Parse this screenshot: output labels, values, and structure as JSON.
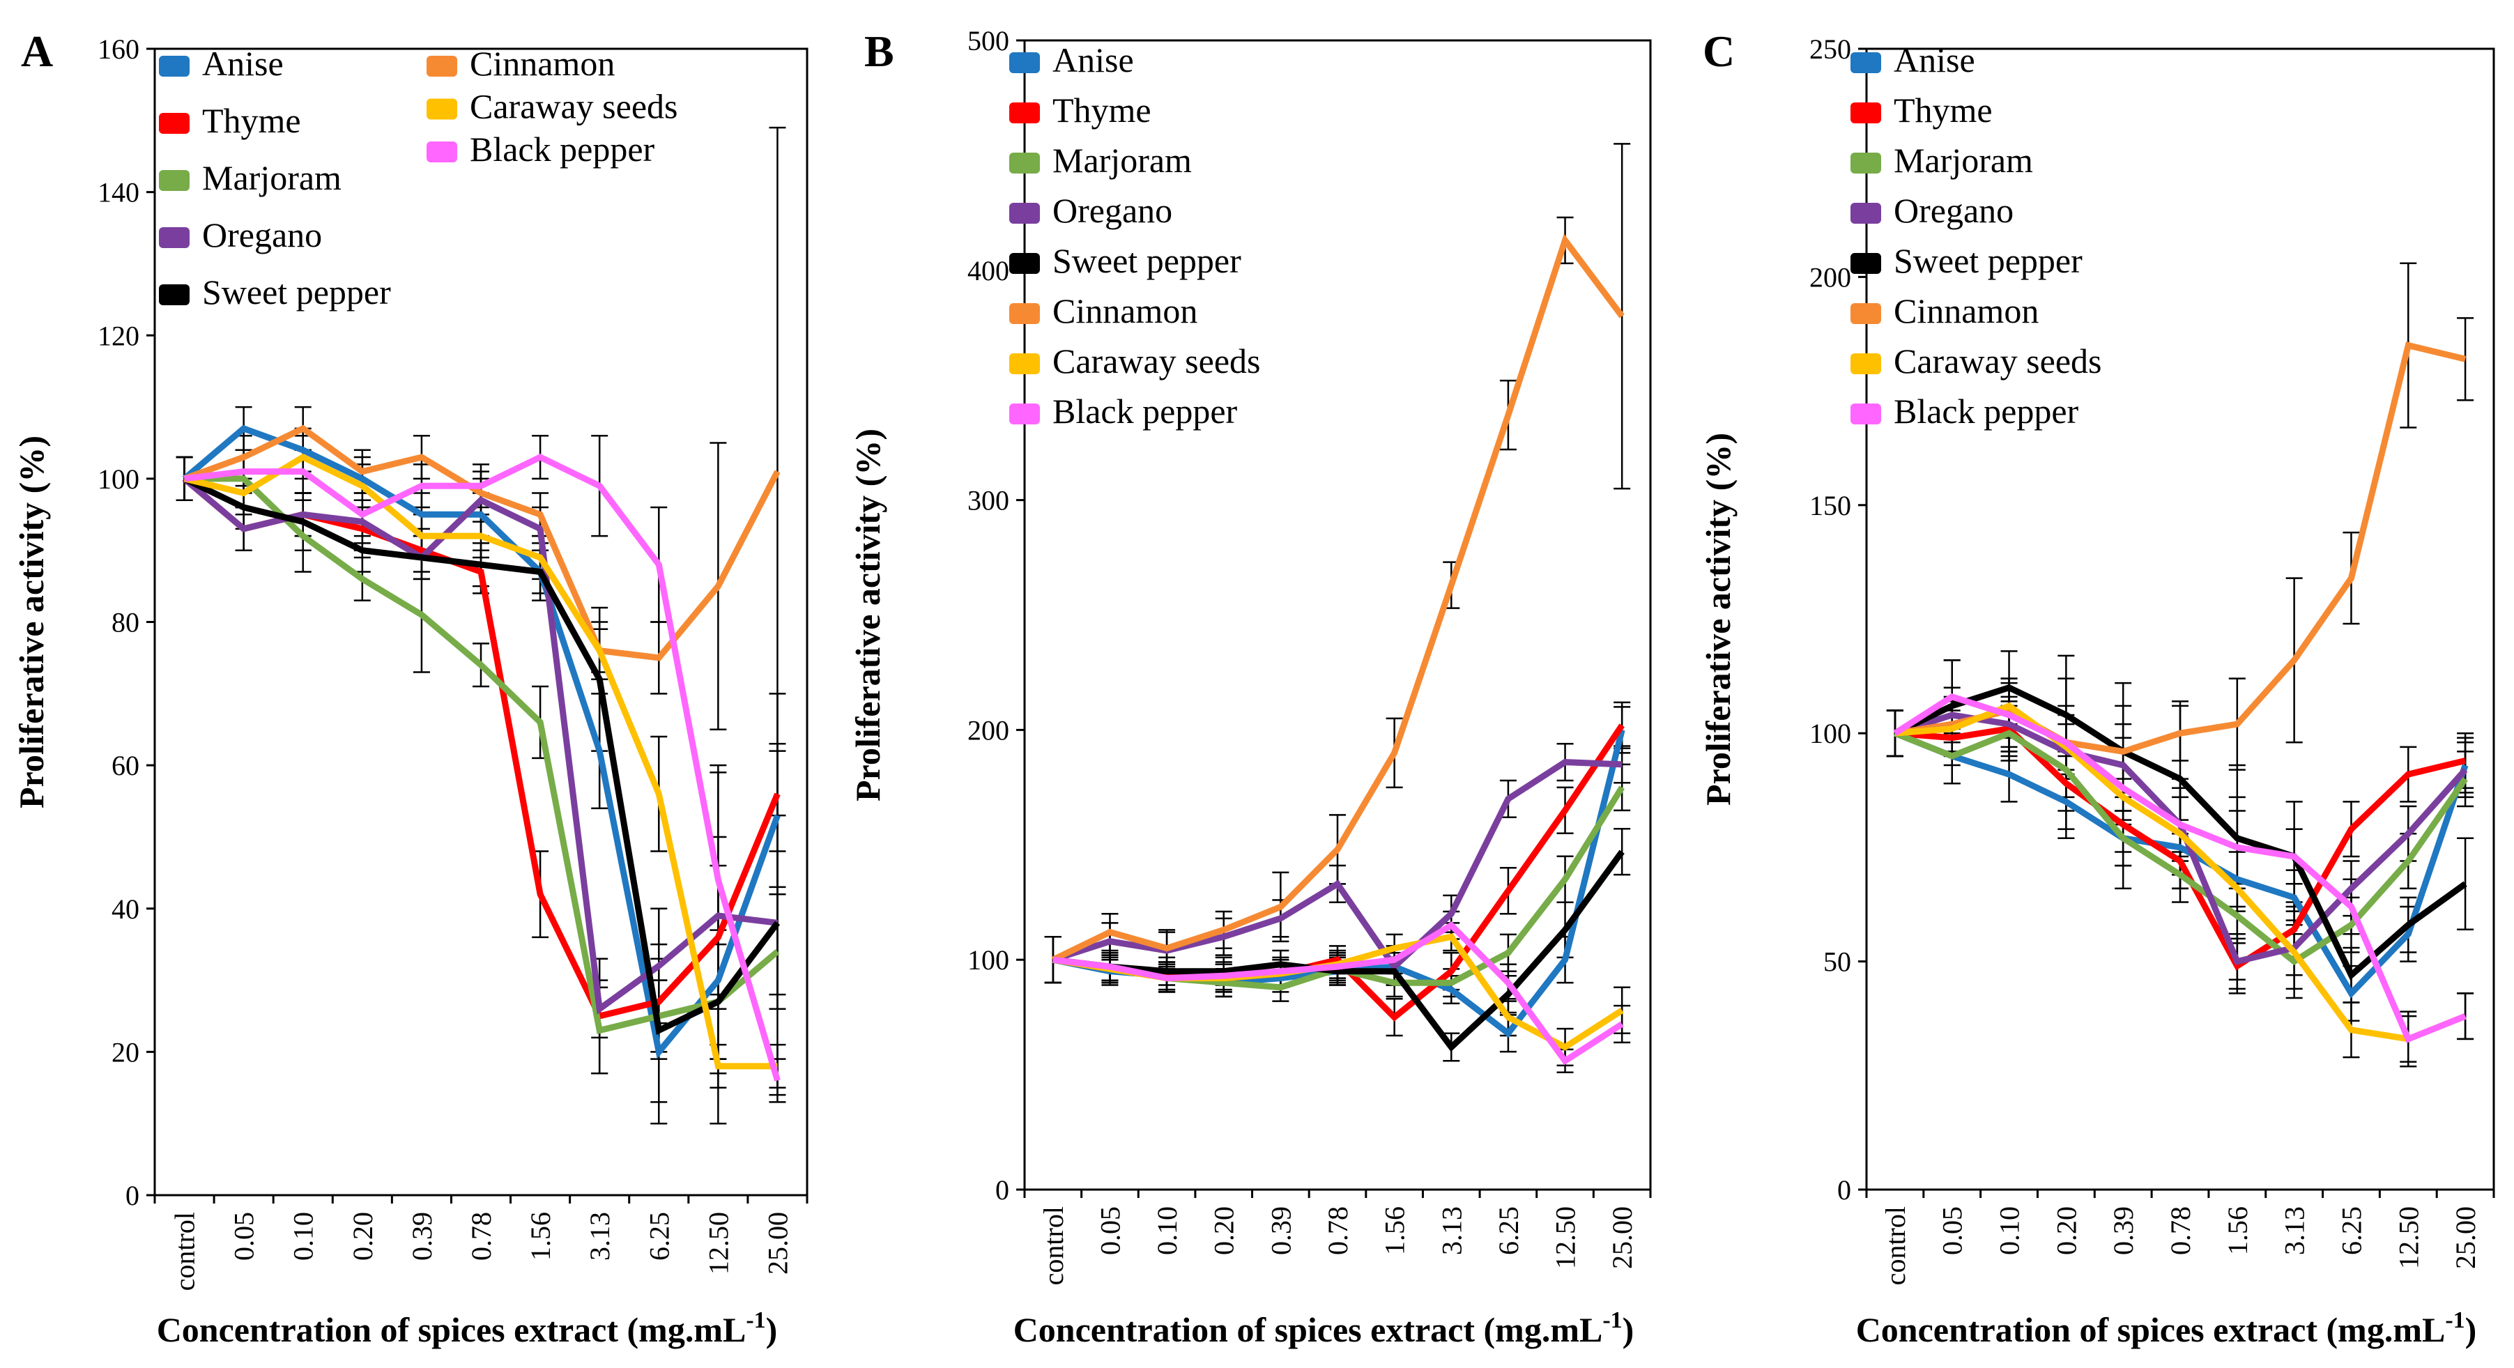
{
  "chart_data": [
    {
      "type": "line",
      "panel": "A",
      "categories": [
        "control",
        "0.05",
        "0.10",
        "0.20",
        "0.39",
        "0.78",
        "1.56",
        "3.13",
        "6.25",
        "12.50",
        "25.00"
      ],
      "xlabel": "Concentration of spices extract (mg.mL",
      "xlabel_sup": "-1",
      "xlabel_end": ")",
      "ylabel": "Proliferative activity (%)",
      "ylim": [
        0,
        160
      ],
      "yticks": [
        "0",
        "20",
        "40",
        "60",
        "80",
        "100",
        "120",
        "140",
        "160"
      ],
      "legend_layout": "two-column",
      "series": [
        {
          "name": "Anise",
          "color": "#1f78c1",
          "values": [
            100,
            107,
            104,
            100,
            95,
            95,
            87,
            62,
            20,
            30,
            53
          ],
          "errors": [
            3,
            3,
            3,
            3,
            3,
            3,
            4,
            8,
            10,
            20,
            10
          ]
        },
        {
          "name": "Thyme",
          "color": "#ff0000",
          "values": [
            100,
            93,
            95,
            93,
            90,
            87,
            42,
            25,
            27,
            36,
            56
          ],
          "errors": [
            3,
            3,
            3,
            3,
            3,
            3,
            6,
            8,
            8,
            10,
            14
          ]
        },
        {
          "name": "Marjoram",
          "color": "#77ac48",
          "values": [
            100,
            100,
            92,
            86,
            81,
            74,
            66,
            23,
            25,
            27,
            34
          ],
          "errors": [
            3,
            4,
            5,
            3,
            8,
            3,
            5,
            6,
            5,
            8,
            8
          ]
        },
        {
          "name": "Oregano",
          "color": "#7a3f9e",
          "values": [
            100,
            93,
            95,
            94,
            89,
            97,
            93,
            26,
            32,
            39,
            38
          ],
          "errors": [
            3,
            3,
            3,
            3,
            3,
            3,
            3,
            4,
            8,
            20,
            24
          ]
        },
        {
          "name": "Sweet pepper",
          "color": "#000000",
          "values": [
            100,
            96,
            94,
            90,
            89,
            88,
            87,
            72,
            23,
            27,
            38
          ],
          "errors": [
            3,
            3,
            4,
            3,
            3,
            3,
            3,
            10,
            10,
            10,
            10
          ]
        },
        {
          "name": "Cinnamon",
          "color": "#f68a33",
          "values": [
            100,
            103,
            107,
            101,
            103,
            98,
            95,
            76,
            75,
            85,
            101
          ],
          "errors": [
            3,
            3,
            3,
            3,
            3,
            3,
            3,
            3,
            5,
            20,
            48
          ]
        },
        {
          "name": "Caraway seeds",
          "color": "#ffc000",
          "values": [
            100,
            98,
            103,
            99,
            92,
            92,
            89,
            76,
            56,
            18,
            18
          ],
          "errors": [
            3,
            3,
            3,
            3,
            3,
            3,
            3,
            4,
            8,
            3,
            3
          ]
        },
        {
          "name": "Black pepper",
          "color": "#ff66ff",
          "values": [
            100,
            101,
            101,
            95,
            99,
            99,
            103,
            99,
            88,
            44,
            16
          ],
          "errors": [
            3,
            3,
            3,
            3,
            3,
            3,
            3,
            7,
            8,
            16,
            3
          ]
        }
      ]
    },
    {
      "type": "line",
      "panel": "B",
      "categories": [
        "control",
        "0.05",
        "0.10",
        "0.20",
        "0.39",
        "0.78",
        "1.56",
        "3.13",
        "6.25",
        "12.50",
        "25.00"
      ],
      "xlabel": "Concentration of spices extract (mg.mL",
      "xlabel_sup": "-1",
      "xlabel_end": ")",
      "ylabel": "Proliferative activity (%)",
      "ylim": [
        0,
        500
      ],
      "yticks": [
        "0",
        "100",
        "200",
        "300",
        "400",
        "500"
      ],
      "legend_layout": "one-column",
      "series": [
        {
          "name": "Anise",
          "color": "#1f78c1",
          "values": [
            100,
            95,
            93,
            90,
            92,
            95,
            97,
            87,
            68,
            100,
            200
          ],
          "errors": [
            10,
            6,
            6,
            6,
            6,
            6,
            6,
            6,
            8,
            10,
            10
          ]
        },
        {
          "name": "Thyme",
          "color": "#ff0000",
          "values": [
            100,
            96,
            93,
            92,
            94,
            100,
            75,
            95,
            130,
            165,
            202
          ],
          "errors": [
            10,
            6,
            6,
            6,
            6,
            6,
            8,
            8,
            10,
            10,
            10
          ]
        },
        {
          "name": "Marjoram",
          "color": "#77ac48",
          "values": [
            100,
            97,
            92,
            90,
            88,
            96,
            90,
            90,
            103,
            135,
            175
          ],
          "errors": [
            10,
            6,
            6,
            6,
            6,
            6,
            6,
            6,
            8,
            10,
            10
          ]
        },
        {
          "name": "Oregano",
          "color": "#7a3f9e",
          "values": [
            100,
            108,
            104,
            110,
            118,
            133,
            97,
            120,
            170,
            186,
            185
          ],
          "errors": [
            10,
            8,
            8,
            8,
            8,
            8,
            8,
            8,
            8,
            8,
            8
          ]
        },
        {
          "name": "Sweet pepper",
          "color": "#000000",
          "values": [
            100,
            97,
            95,
            95,
            98,
            95,
            95,
            62,
            85,
            113,
            147
          ],
          "errors": [
            10,
            6,
            6,
            6,
            6,
            6,
            6,
            6,
            8,
            12,
            10
          ]
        },
        {
          "name": "Cinnamon",
          "color": "#f68a33",
          "values": [
            100,
            112,
            105,
            113,
            123,
            148,
            190,
            263,
            337,
            413,
            380
          ],
          "errors": [
            10,
            8,
            8,
            8,
            15,
            15,
            15,
            10,
            15,
            10,
            75
          ]
        },
        {
          "name": "Caraway seeds",
          "color": "#ffc000",
          "values": [
            100,
            96,
            92,
            92,
            94,
            98,
            105,
            110,
            75,
            62,
            78
          ],
          "errors": [
            10,
            6,
            6,
            6,
            6,
            6,
            6,
            6,
            8,
            8,
            10
          ]
        },
        {
          "name": "Black pepper",
          "color": "#ff66ff",
          "values": [
            100,
            97,
            92,
            93,
            95,
            97,
            100,
            115,
            90,
            56,
            72
          ],
          "errors": [
            10,
            6,
            6,
            6,
            6,
            6,
            6,
            6,
            8,
            5,
            8
          ]
        }
      ]
    },
    {
      "type": "line",
      "panel": "C",
      "categories": [
        "control",
        "0.05",
        "0.10",
        "0.20",
        "0.39",
        "0.78",
        "1.56",
        "3.13",
        "6.25",
        "12.50",
        "25.00"
      ],
      "xlabel": "Concentration of spices extract (mg.mL",
      "xlabel_sup": "-1",
      "xlabel_end": ")",
      "ylabel": "Proliferative activity (%)",
      "ylim": [
        0,
        250
      ],
      "yticks": [
        "0",
        "50",
        "100",
        "150",
        "200",
        "250"
      ],
      "legend_layout": "one-column",
      "series": [
        {
          "name": "Anise",
          "color": "#1f78c1",
          "values": [
            100,
            95,
            91,
            85,
            77,
            75,
            68,
            64,
            43,
            56,
            93
          ],
          "errors": [
            5,
            6,
            6,
            6,
            6,
            6,
            6,
            6,
            6,
            6,
            6
          ]
        },
        {
          "name": "Thyme",
          "color": "#ff0000",
          "values": [
            100,
            99,
            101,
            89,
            80,
            72,
            49,
            57,
            79,
            91,
            94
          ],
          "errors": [
            5,
            6,
            6,
            6,
            6,
            6,
            6,
            6,
            6,
            6,
            6
          ]
        },
        {
          "name": "Marjoram",
          "color": "#77ac48",
          "values": [
            100,
            95,
            100,
            92,
            77,
            69,
            60,
            50,
            58,
            72,
            90
          ],
          "errors": [
            5,
            6,
            6,
            6,
            6,
            6,
            6,
            6,
            6,
            6,
            6
          ]
        },
        {
          "name": "Oregano",
          "color": "#7a3f9e",
          "values": [
            100,
            104,
            102,
            96,
            93,
            80,
            50,
            53,
            66,
            78,
            92
          ],
          "errors": [
            5,
            6,
            6,
            6,
            6,
            6,
            6,
            6,
            6,
            6,
            6
          ]
        },
        {
          "name": "Sweet pepper",
          "color": "#000000",
          "values": [
            100,
            106,
            110,
            104,
            96,
            90,
            77,
            73,
            47,
            58,
            67
          ],
          "errors": [
            5,
            10,
            8,
            8,
            15,
            17,
            16,
            12,
            6,
            6,
            10
          ]
        },
        {
          "name": "Cinnamon",
          "color": "#f68a33",
          "values": [
            100,
            102,
            105,
            98,
            96,
            100,
            102,
            116,
            134,
            185,
            182
          ],
          "errors": [
            5,
            6,
            6,
            6,
            6,
            6,
            10,
            18,
            10,
            18,
            9
          ]
        },
        {
          "name": "Caraway seeds",
          "color": "#ffc000",
          "values": [
            100,
            101,
            106,
            97,
            86,
            78,
            66,
            52,
            35,
            33,
            38
          ],
          "errors": [
            5,
            6,
            6,
            20,
            20,
            12,
            20,
            10,
            6,
            5,
            5
          ]
        },
        {
          "name": "Black pepper",
          "color": "#ff66ff",
          "values": [
            100,
            108,
            104,
            98,
            88,
            80,
            75,
            73,
            62,
            33,
            38
          ],
          "errors": [
            5,
            8,
            8,
            8,
            8,
            8,
            8,
            6,
            6,
            6,
            5
          ]
        }
      ]
    }
  ]
}
